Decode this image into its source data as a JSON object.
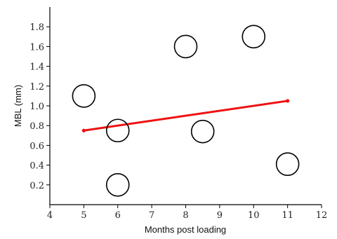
{
  "chart_data": {
    "type": "scatter",
    "title": "",
    "xlabel": "Months post loading",
    "ylabel": "MBL (mm)",
    "xlim": [
      4,
      12
    ],
    "ylim": [
      0,
      2.0
    ],
    "x_ticks": [
      "4",
      "5",
      "6",
      "7",
      "8",
      "9",
      "10",
      "11",
      "12"
    ],
    "y_ticks": [
      "0.2",
      "0.4",
      "0.6",
      "0.8",
      "1.0",
      "1.2",
      "1.4",
      "1.6",
      "1.8"
    ],
    "grid": false,
    "series": [
      {
        "marker": "open-circle",
        "points": [
          {
            "x": 5,
            "y": 1.1
          },
          {
            "x": 6,
            "y": 0.75
          },
          {
            "x": 6,
            "y": 0.2
          },
          {
            "x": 8,
            "y": 1.6
          },
          {
            "x": 8.5,
            "y": 0.74
          },
          {
            "x": 10,
            "y": 1.7
          },
          {
            "x": 11,
            "y": 0.41
          }
        ]
      }
    ],
    "trendline": {
      "color": "#ee1111",
      "points": [
        {
          "x": 5,
          "y": 0.75
        },
        {
          "x": 11,
          "y": 1.05
        }
      ]
    }
  }
}
